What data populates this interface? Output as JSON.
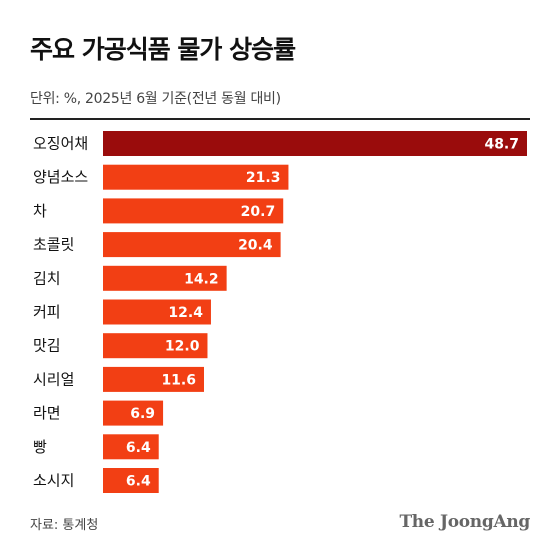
{
  "title": "주요 가공식품 물가 상승률",
  "subtitle": "단위: %, 2025년 6월 기준(전년 동월 대비)",
  "source": "자료: 통계청",
  "brand": "The JoongAng",
  "colors": {
    "highlight": "#9a0c0c",
    "bar": "#f23f14"
  },
  "chart_data": {
    "type": "bar",
    "orientation": "horizontal",
    "categories": [
      "오징어채",
      "양념소스",
      "차",
      "초콜릿",
      "김치",
      "커피",
      "맛김",
      "시리얼",
      "라면",
      "빵",
      "소시지"
    ],
    "values": [
      48.7,
      21.3,
      20.7,
      20.4,
      14.2,
      12.4,
      12.0,
      11.6,
      6.9,
      6.4,
      6.4
    ],
    "value_labels": [
      "48.7",
      "21.3",
      "20.7",
      "20.4",
      "14.2",
      "12.4",
      "12.0",
      "11.6",
      "6.9",
      "6.4",
      "6.4"
    ],
    "highlight_index": 0,
    "xlim": [
      0,
      48.7
    ],
    "grid": false,
    "title": "주요 가공식품 물가 상승률",
    "xlabel": "",
    "ylabel": ""
  }
}
